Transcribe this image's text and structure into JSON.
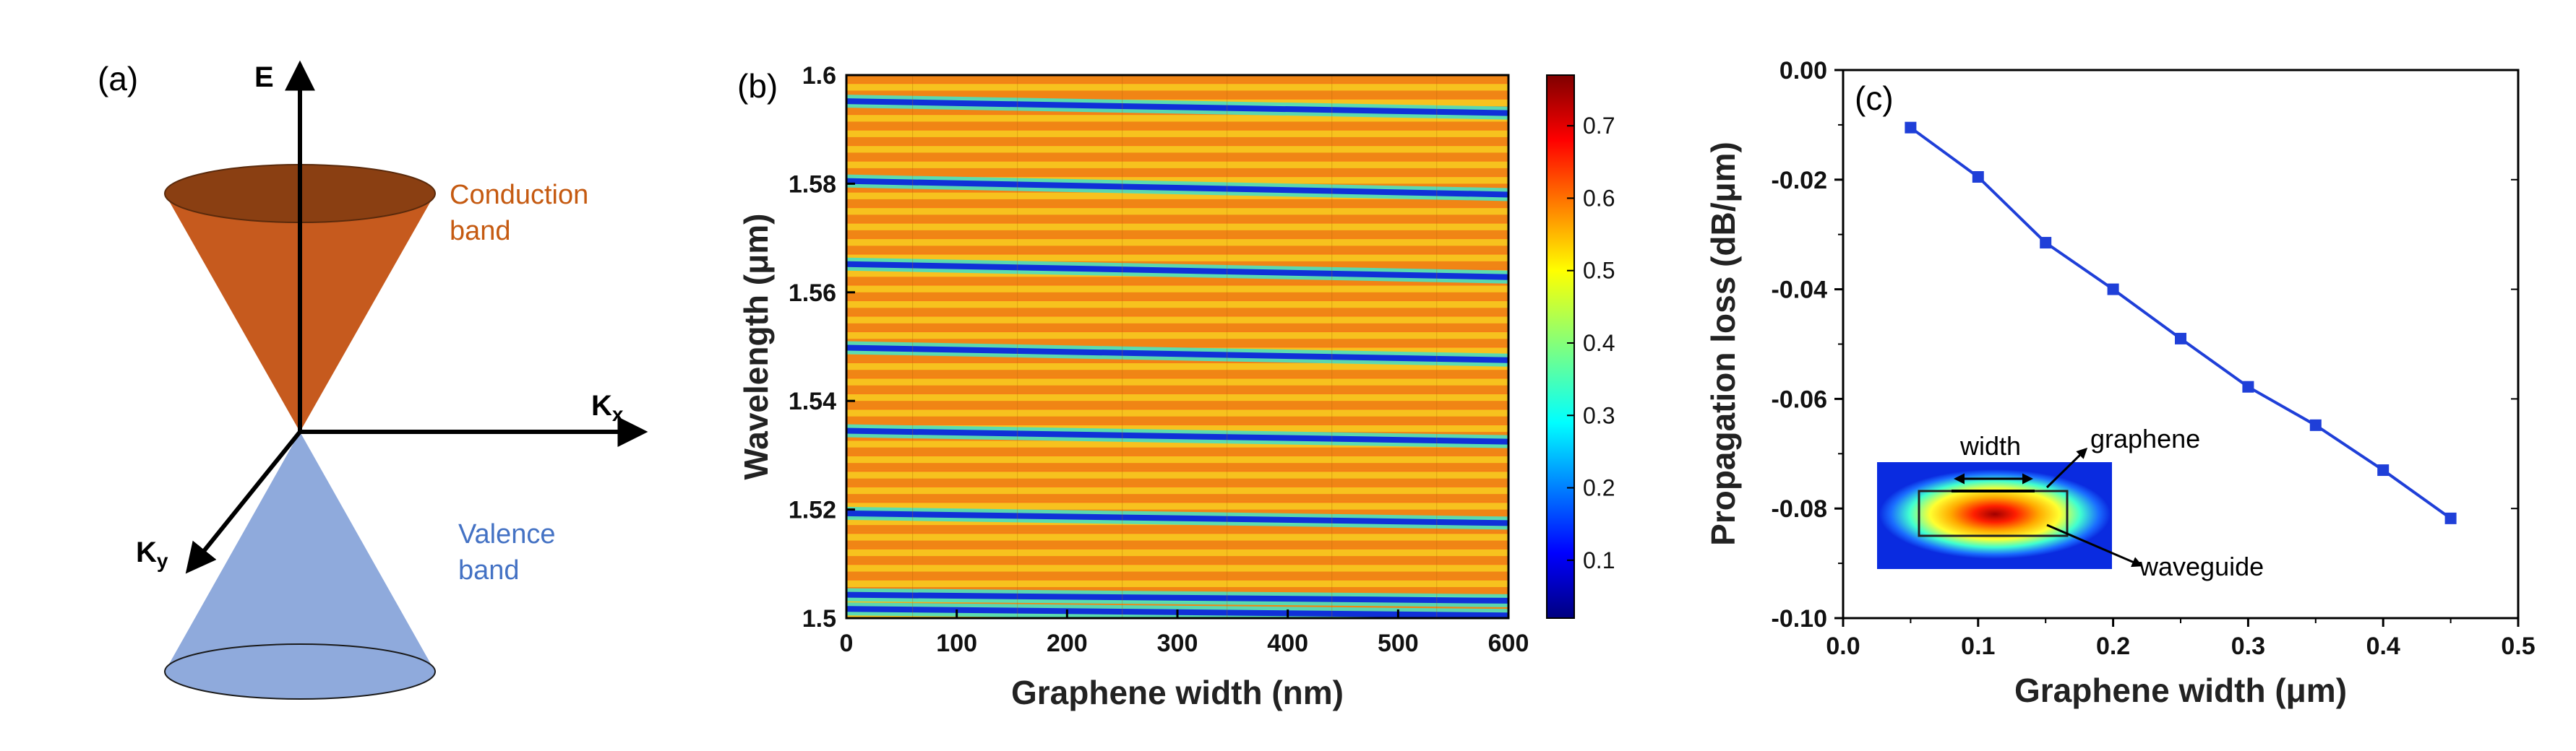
{
  "panel_a": {
    "label": "(a)",
    "axis_e": "E",
    "axis_kx": "K",
    "axis_kx_sub": "x",
    "axis_ky": "K",
    "axis_ky_sub": "y",
    "conduction_line1": "Conduction",
    "conduction_line2": "band",
    "valence_line1": "Valence",
    "valence_line2": "band",
    "colors": {
      "conduction": "#c65a1e",
      "conduction_top": "#8a3f12",
      "valence": "#8faadc",
      "conduction_text": "#c55a11",
      "valence_text": "#4472c4"
    }
  },
  "chart_data": [
    {
      "panel": "(b)",
      "type": "heatmap",
      "xlabel": "Graphene width (nm)",
      "ylabel": "Wavelength (μm)",
      "xlim": [
        0,
        600
      ],
      "ylim": [
        1.5,
        1.6
      ],
      "x_ticks": [
        "0",
        "100",
        "200",
        "300",
        "400",
        "500",
        "600"
      ],
      "y_ticks": [
        "1.5",
        "1.52",
        "1.54",
        "1.56",
        "1.58",
        "1.6"
      ],
      "colorbar_ticks": [
        "0.1",
        "0.2",
        "0.3",
        "0.4",
        "0.5",
        "0.6",
        "0.7"
      ],
      "colorbar_range": [
        0.02,
        0.77
      ],
      "dips": [
        {
          "wavelength_at_0": 1.5017,
          "wavelength_at_600": 1.5005
        },
        {
          "wavelength_at_0": 1.5043,
          "wavelength_at_600": 1.5032
        },
        {
          "wavelength_at_0": 1.5193,
          "wavelength_at_600": 1.5175
        },
        {
          "wavelength_at_0": 1.5345,
          "wavelength_at_600": 1.5325
        },
        {
          "wavelength_at_0": 1.5498,
          "wavelength_at_600": 1.5475
        },
        {
          "wavelength_at_0": 1.5652,
          "wavelength_at_600": 1.5628
        },
        {
          "wavelength_at_0": 1.5805,
          "wavelength_at_600": 1.578
        },
        {
          "wavelength_at_0": 1.5952,
          "wavelength_at_600": 1.593
        }
      ],
      "fringe_count": 35
    },
    {
      "panel": "(c)",
      "type": "line",
      "xlabel": "Graphene width (μm)",
      "ylabel": "Propagation loss (dB/μm)",
      "xlim": [
        0.0,
        0.5
      ],
      "ylim": [
        -0.1,
        0.0
      ],
      "x_ticks": [
        "0.0",
        "0.1",
        "0.2",
        "0.3",
        "0.4",
        "0.5"
      ],
      "y_ticks": [
        "0.00",
        "-0.02",
        "-0.04",
        "-0.06",
        "-0.08",
        "-0.10"
      ],
      "series": [
        {
          "name": "Propagation loss",
          "color": "#1f3fd8",
          "x": [
            0.05,
            0.1,
            0.15,
            0.2,
            0.25,
            0.3,
            0.35,
            0.4,
            0.45
          ],
          "y": [
            -0.0105,
            -0.0195,
            -0.0315,
            -0.04,
            -0.049,
            -0.0578,
            -0.0648,
            -0.073,
            -0.0818
          ]
        }
      ],
      "inset": {
        "width_label": "width",
        "graphene_label": "graphene",
        "waveguide_label": "waveguide"
      }
    }
  ]
}
